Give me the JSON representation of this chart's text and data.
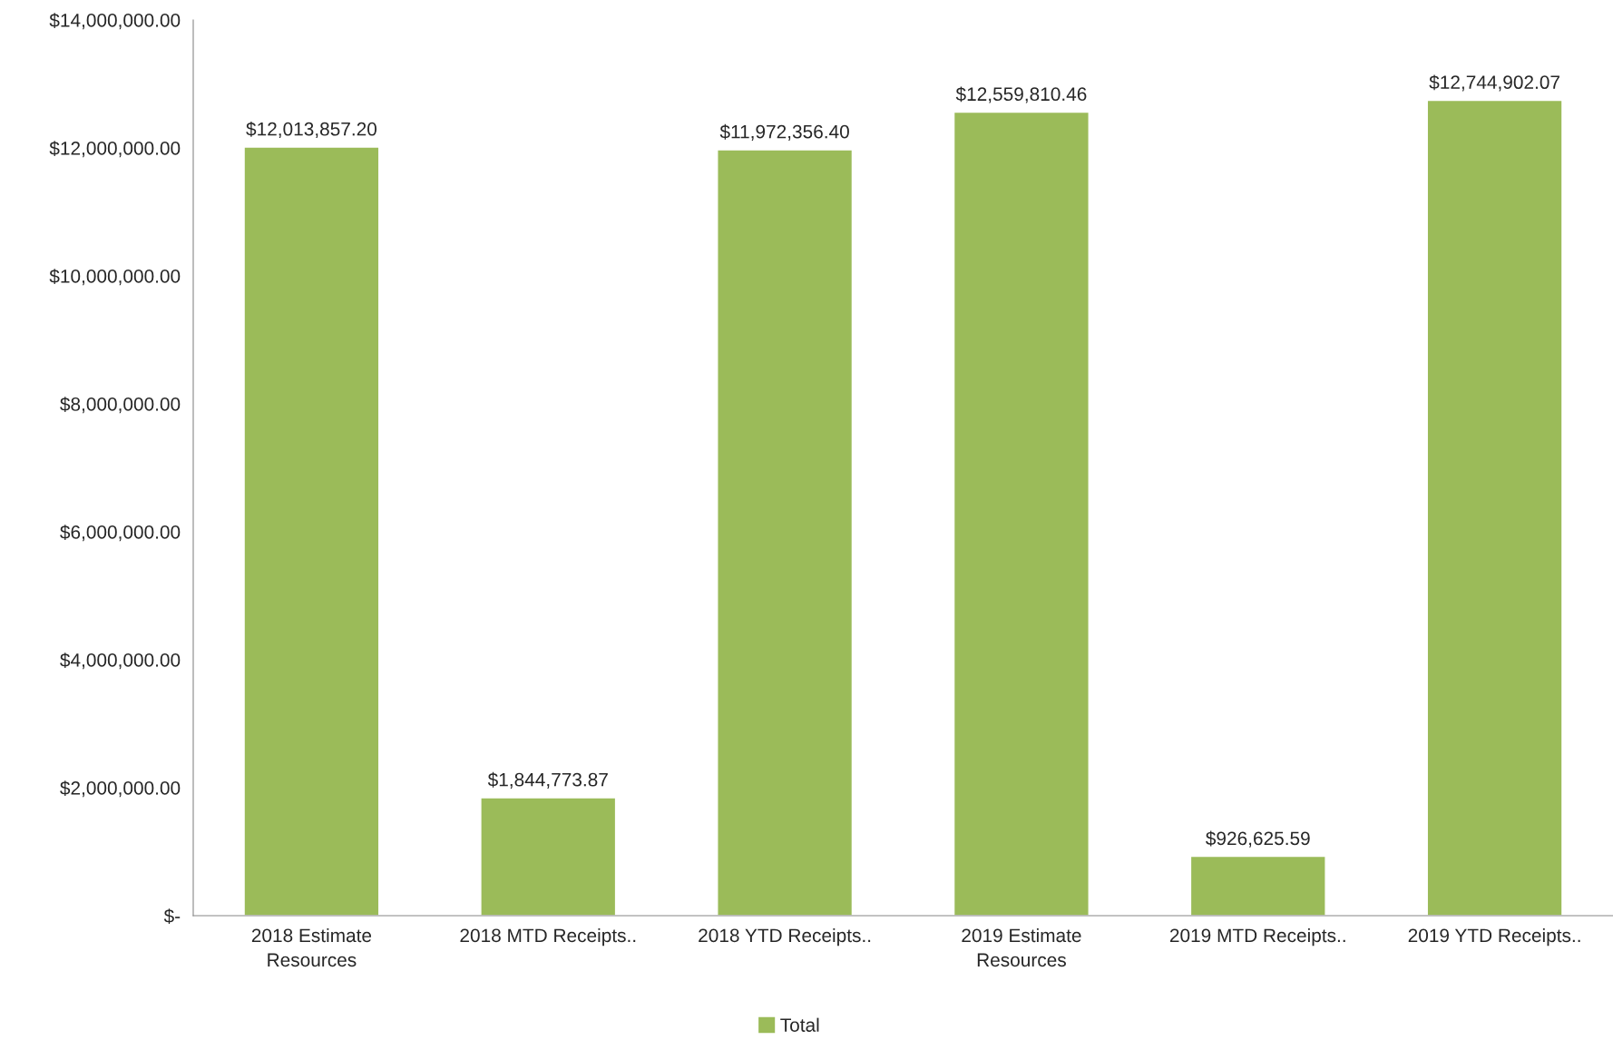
{
  "chart_data": {
    "type": "bar",
    "categories": [
      "2018 Estimate\nResources",
      "2018 MTD Receipts..",
      "2018 YTD Receipts..",
      "2019 Estimate\nResources",
      "2019 MTD Receipts..",
      "2019 YTD Receipts.."
    ],
    "series": [
      {
        "name": "Total",
        "color": "#9bbb59",
        "values": [
          12013857.2,
          1844773.87,
          11972356.4,
          12559810.46,
          926625.59,
          12744902.07
        ],
        "value_labels": [
          "$12,013,857.20",
          "$1,844,773.87",
          "$11,972,356.40",
          "$12,559,810.46",
          "$926,625.59",
          "$12,744,902.07"
        ]
      }
    ],
    "ylim": [
      0,
      14000000
    ],
    "yticks": [
      {
        "value": 0,
        "label": "$-"
      },
      {
        "value": 2000000,
        "label": "$2,000,000.00"
      },
      {
        "value": 4000000,
        "label": "$4,000,000.00"
      },
      {
        "value": 6000000,
        "label": "$6,000,000.00"
      },
      {
        "value": 8000000,
        "label": "$8,000,000.00"
      },
      {
        "value": 10000000,
        "label": "$10,000,000.00"
      },
      {
        "value": 12000000,
        "label": "$12,000,000.00"
      },
      {
        "value": 14000000,
        "label": "$14,000,000.00"
      }
    ],
    "grid": false,
    "legend": "bottom"
  }
}
